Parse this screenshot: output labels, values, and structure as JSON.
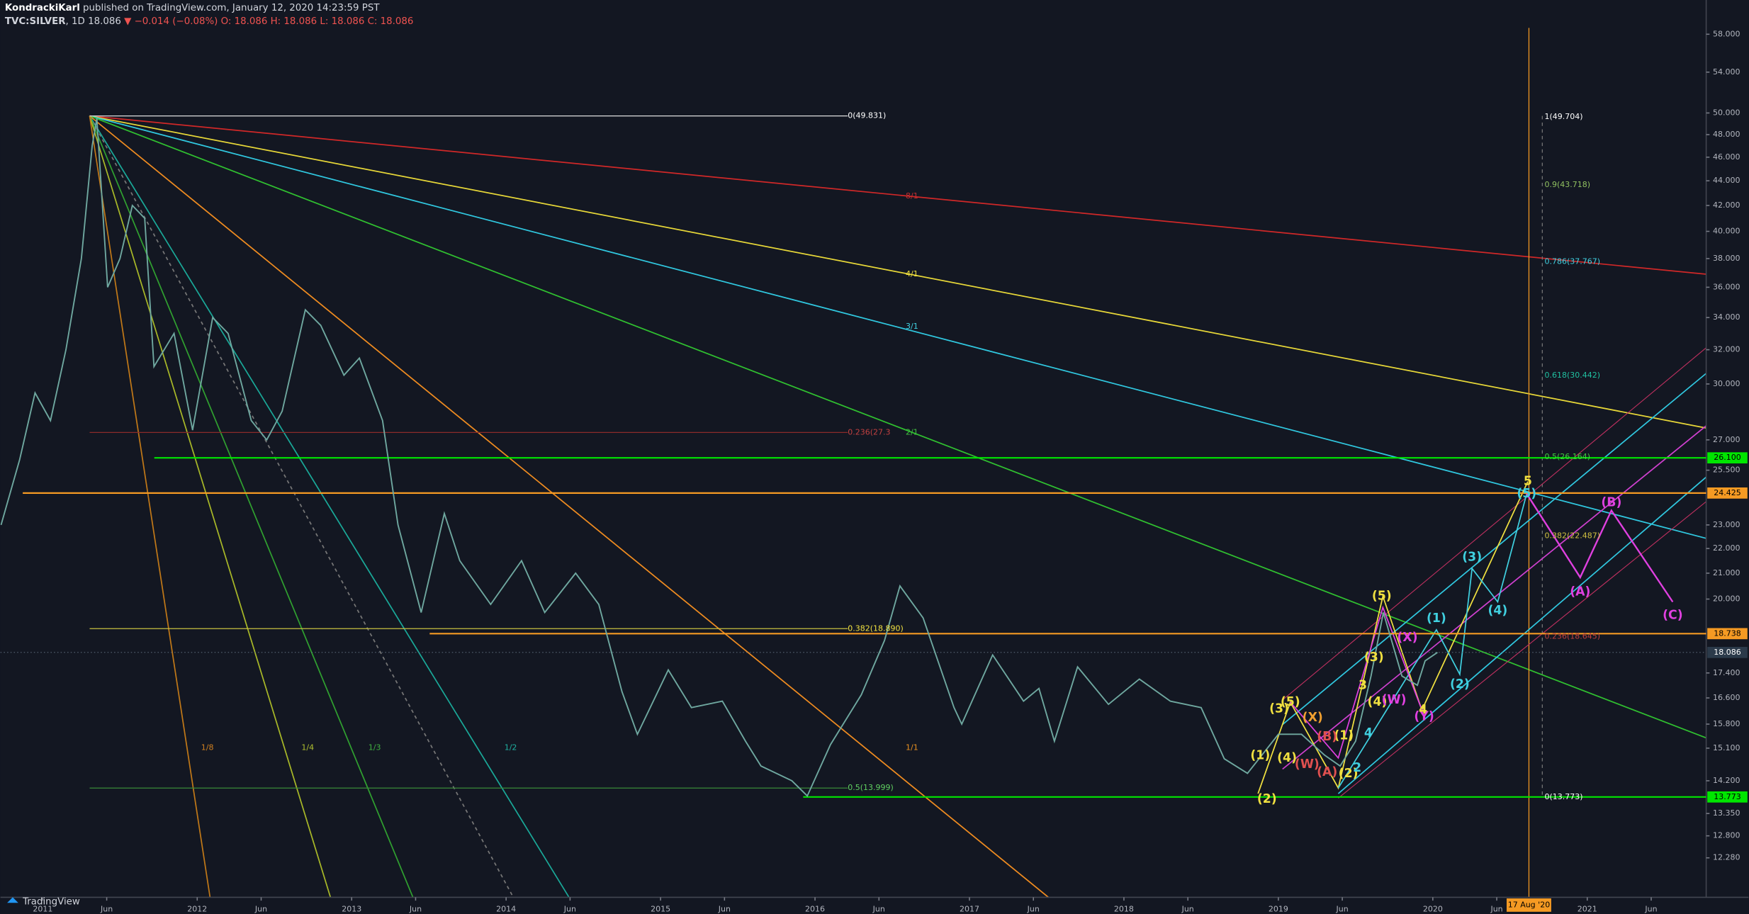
{
  "header": {
    "author": "KondrackiKarl",
    "published": "published on TradingView.com, January 12, 2020 14:23:59 PST",
    "interval": "1D",
    "last": "18.086",
    "change": "−0.014 (−0.08%)",
    "ohlc": "O: 18.086 H: 18.086 L: 18.086 C: 18.086",
    "brand": "TradingView"
  },
  "chart_data": {
    "type": "line",
    "log_scale": true,
    "series": [
      {
        "name": "TVC:SILVER",
        "color": "#6fa8a0",
        "x": [
          2010.73,
          2010.85,
          2010.95,
          2011.05,
          2011.15,
          2011.25,
          2011.32,
          2011.35,
          2011.42,
          2011.5,
          2011.58,
          2011.66,
          2011.72,
          2011.85,
          2011.97,
          2012.1,
          2012.2,
          2012.35,
          2012.45,
          2012.55,
          2012.7,
          2012.8,
          2012.95,
          2013.05,
          2013.2,
          2013.3,
          2013.45,
          2013.6,
          2013.7,
          2013.9,
          2014.1,
          2014.25,
          2014.45,
          2014.6,
          2014.75,
          2014.85,
          2015.05,
          2015.2,
          2015.4,
          2015.55,
          2015.65,
          2015.85,
          2015.95,
          2016.1,
          2016.3,
          2016.45,
          2016.55,
          2016.7,
          2016.9,
          2016.95,
          2017.15,
          2017.35,
          2017.45,
          2017.55,
          2017.7,
          2017.9,
          2018.1,
          2018.3,
          2018.5,
          2018.65,
          2018.8,
          2019.0,
          2019.15,
          2019.3,
          2019.4,
          2019.5,
          2019.6,
          2019.68,
          2019.8,
          2019.9,
          2019.95,
          2020.03
        ],
        "values": [
          23.0,
          26,
          29.5,
          28,
          32,
          38,
          47,
          49.5,
          36,
          38,
          42,
          41,
          31,
          33,
          27.5,
          34,
          33,
          28,
          27,
          28.5,
          34.5,
          33.5,
          30.5,
          31.5,
          28,
          23,
          19.5,
          23.5,
          21.5,
          19.8,
          21.5,
          19.5,
          21,
          19.8,
          16.8,
          15.5,
          17.5,
          16.3,
          16.5,
          15.3,
          14.6,
          14.2,
          13.8,
          15.2,
          16.7,
          18.5,
          20.5,
          19.3,
          16.3,
          15.8,
          18.0,
          16.5,
          16.9,
          15.3,
          17.6,
          16.4,
          17.2,
          16.5,
          16.3,
          14.8,
          14.4,
          15.5,
          15.5,
          14.9,
          14.6,
          15.3,
          17.3,
          19.5,
          17.3,
          17.0,
          17.8,
          18.086
        ]
      }
    ],
    "xlim": [
      2010.726,
      2021.77
    ],
    "xticks": [
      {
        "value": 2011,
        "label": "2011"
      },
      {
        "value": 2011.414,
        "label": "Jun"
      },
      {
        "value": 2012,
        "label": "2012"
      },
      {
        "value": 2012.414,
        "label": "Jun"
      },
      {
        "value": 2013,
        "label": "2013"
      },
      {
        "value": 2013.414,
        "label": "Jun"
      },
      {
        "value": 2014,
        "label": "2014"
      },
      {
        "value": 2014.414,
        "label": "Jun"
      },
      {
        "value": 2015,
        "label": "2015"
      },
      {
        "value": 2015.414,
        "label": "Jun"
      },
      {
        "value": 2016,
        "label": "2016"
      },
      {
        "value": 2016.414,
        "label": "Jun"
      },
      {
        "value": 2017,
        "label": "2017"
      },
      {
        "value": 2017.414,
        "label": "Jun"
      },
      {
        "value": 2018,
        "label": "2018"
      },
      {
        "value": 2018.414,
        "label": "Jun"
      },
      {
        "value": 2019,
        "label": "2019"
      },
      {
        "value": 2019.414,
        "label": "Jun"
      },
      {
        "value": 2020,
        "label": "2020"
      },
      {
        "value": 2020.414,
        "label": "Jun"
      },
      {
        "value": 2021,
        "label": "2021"
      },
      {
        "value": 2021.414,
        "label": "Jun"
      }
    ],
    "ylim": [
      11.4,
      58.7
    ],
    "yticks": [
      {
        "value": 58,
        "label": "58.000"
      },
      {
        "value": 54,
        "label": "54.000"
      },
      {
        "value": 50,
        "label": "50.000"
      },
      {
        "value": 48,
        "label": "48.000"
      },
      {
        "value": 46,
        "label": "46.000"
      },
      {
        "value": 44,
        "label": "44.000"
      },
      {
        "value": 42,
        "label": "42.000"
      },
      {
        "value": 40,
        "label": "40.000"
      },
      {
        "value": 38,
        "label": "38.000"
      },
      {
        "value": 36,
        "label": "36.000"
      },
      {
        "value": 34,
        "label": "34.000"
      },
      {
        "value": 32,
        "label": "32.000"
      },
      {
        "value": 30,
        "label": "30.000"
      },
      {
        "value": 27,
        "label": "27.000"
      },
      {
        "value": 25.5,
        "label": "25.500"
      },
      {
        "value": 23,
        "label": "23.000"
      },
      {
        "value": 22,
        "label": "22.000"
      },
      {
        "value": 21,
        "label": "21.000"
      },
      {
        "value": 20,
        "label": "20.000"
      },
      {
        "value": 17.4,
        "label": "17.400"
      },
      {
        "value": 16.6,
        "label": "16.600"
      },
      {
        "value": 15.8,
        "label": "15.800"
      },
      {
        "value": 15.1,
        "label": "15.100"
      },
      {
        "value": 14.2,
        "label": "14.200"
      },
      {
        "value": 13.35,
        "label": "13.350"
      },
      {
        "value": 12.8,
        "label": "12.800"
      },
      {
        "value": 12.28,
        "label": "12.280"
      }
    ],
    "price_labels": [
      {
        "value": 26.1,
        "label": "26.100",
        "color": "#00e600"
      },
      {
        "value": 24.425,
        "label": "24.425",
        "color": "#f59a23"
      },
      {
        "value": 18.738,
        "label": "18.738",
        "color": "#f59a23"
      },
      {
        "value": 18.086,
        "label": "18.086",
        "color": "#2b3a4a"
      },
      {
        "value": 13.773,
        "label": "13.773",
        "color": "#00e600"
      }
    ],
    "date_label": "17 Aug '20",
    "annotations": [
      {
        "text": "8/1",
        "color": "#c43030"
      },
      {
        "text": "4/1",
        "color": "#f0e040"
      },
      {
        "text": "3/1",
        "color": "#40d0e0"
      },
      {
        "text": "2/1",
        "color": "#40c040"
      },
      {
        "text": "1/1",
        "color": "#e89020"
      },
      {
        "text": "1/2",
        "color": "#20b0a0"
      },
      {
        "text": "1/3",
        "color": "#40b040"
      },
      {
        "text": "1/4",
        "color": "#b0c030"
      },
      {
        "text": "1/8",
        "color": "#d08020"
      },
      {
        "text": "0(49.831)",
        "color": "#ffffff"
      },
      {
        "text": "0.236(27.3",
        "color": "#c04040"
      },
      {
        "text": "0.382(18.890)",
        "color": "#f0e040"
      },
      {
        "text": "0.5(13.999)",
        "color": "#60d060"
      },
      {
        "text": "1(49.704)",
        "color": "#ffffff"
      },
      {
        "text": "0.9(43.718)",
        "color": "#90c060"
      },
      {
        "text": "0.786(37.767)",
        "color": "#40d0e0"
      },
      {
        "text": "0.618(30.442)",
        "color": "#20c0a0"
      },
      {
        "text": "0.5(26.164)",
        "color": "#40d040"
      },
      {
        "text": "0.382(22.487)",
        "color": "#d0c040"
      },
      {
        "text": "0.236(18.645)",
        "color": "#c04040"
      },
      {
        "text": "0(13.773)",
        "color": "#ffffff"
      },
      {
        "text": "(1)",
        "color": "#f0e040"
      },
      {
        "text": "(2)",
        "color": "#f0e040"
      },
      {
        "text": "(3)",
        "color": "#f0e040"
      },
      {
        "text": "(4)",
        "color": "#f0e040"
      },
      {
        "text": "(5)",
        "color": "#f0e040"
      },
      {
        "text": "(1)",
        "color": "#f0e040"
      },
      {
        "text": "(2)",
        "color": "#f0e040"
      },
      {
        "text": "(3)",
        "color": "#f0e040"
      },
      {
        "text": "(4)",
        "color": "#f0e040"
      },
      {
        "text": "(5)",
        "color": "#f0e040"
      },
      {
        "text": "5",
        "color": "#f0e040"
      },
      {
        "text": "(1)",
        "color": "#40d0e0"
      },
      {
        "text": "(2)",
        "color": "#40d0e0"
      },
      {
        "text": "(3)",
        "color": "#40d0e0"
      },
      {
        "text": "(4)",
        "color": "#40d0e0"
      },
      {
        "text": "(5)",
        "color": "#40d0e0"
      },
      {
        "text": "(A)",
        "color": "#e040e0"
      },
      {
        "text": "(B)",
        "color": "#e040e0"
      },
      {
        "text": "(C)",
        "color": "#e040e0"
      },
      {
        "text": "(W)",
        "color": "#e040e0"
      },
      {
        "text": "(X)",
        "color": "#e040e0"
      },
      {
        "text": "(Y)",
        "color": "#e040e0"
      },
      {
        "text": "(X)",
        "color": "#f0a030"
      },
      {
        "text": "(W)",
        "color": "#e05050"
      },
      {
        "text": "(B)",
        "color": "#e05050"
      },
      {
        "text": "(A)",
        "color": "#e05050"
      },
      {
        "text": "3",
        "color": "#f0e040"
      },
      {
        "text": "4",
        "color": "#40d0e0"
      },
      {
        "text": "2",
        "color": "#40d0e0"
      },
      {
        "text": "4",
        "color": "#f0e040"
      }
    ]
  }
}
